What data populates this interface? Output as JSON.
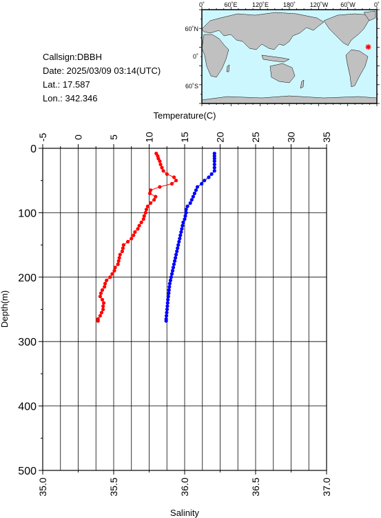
{
  "info": {
    "callsign": "Callsign:DBBH",
    "date": "Date:  2025/03/09 03:14(UTC)",
    "lat": "Lat.:  17.587",
    "lon": "Lon.:  342.346"
  },
  "map": {
    "top_labels": [
      "0˚",
      "60˚E",
      "120˚E",
      "180˚",
      "120˚W",
      "60˚W",
      "0˚"
    ],
    "left_labels": [
      "60˚N",
      "0˚",
      "60˚S"
    ],
    "station": {
      "lat": 17.587,
      "lon": 342.346
    },
    "colors": {
      "ocean": "#cdf7ff",
      "land": "#c0c0c0",
      "marker": "#ff0000"
    }
  },
  "chart_data": {
    "type": "scatter",
    "top_axis": {
      "label": "Temperature(C)",
      "range": [
        -5,
        35
      ],
      "ticks": [
        -5,
        0,
        5,
        10,
        15,
        20,
        25,
        30,
        35
      ]
    },
    "bottom_axis": {
      "label": "Salinity",
      "range": [
        35.0,
        37.0
      ],
      "ticks": [
        "35.0",
        "35.5",
        "36.0",
        "36.5",
        "37.0"
      ]
    },
    "y_axis": {
      "label": "Depth(m)",
      "range": [
        0,
        500
      ],
      "inverted": true,
      "ticks": [
        0,
        100,
        200,
        300,
        400,
        500
      ]
    },
    "grid": true,
    "series": [
      {
        "axis": "temperature",
        "color": "#ff0000",
        "depth": [
          8,
          12,
          16,
          20,
          25,
          30,
          35,
          40,
          45,
          50,
          55,
          60,
          65,
          70,
          75,
          80,
          85,
          90,
          95,
          100,
          105,
          110,
          115,
          120,
          125,
          130,
          135,
          140,
          145,
          150,
          155,
          160,
          165,
          170,
          175,
          180,
          185,
          190,
          195,
          200,
          205,
          210,
          215,
          220,
          225,
          230,
          235,
          240,
          245,
          250,
          255,
          260,
          265,
          268
        ],
        "values": [
          11.0,
          11.2,
          11.3,
          11.5,
          11.6,
          11.8,
          12.0,
          12.5,
          13.5,
          13.8,
          13.2,
          11.5,
          10.2,
          10.1,
          10.9,
          10.7,
          10.2,
          9.8,
          9.6,
          9.5,
          9.3,
          9.2,
          8.9,
          8.6,
          8.4,
          8.0,
          7.8,
          7.5,
          7.0,
          6.4,
          6.3,
          6.2,
          5.9,
          5.8,
          5.7,
          5.6,
          5.2,
          5.1,
          4.8,
          4.5,
          4.0,
          3.8,
          3.7,
          3.4,
          3.2,
          3.1,
          3.4,
          3.6,
          3.5,
          3.5,
          3.3,
          3.1,
          2.8,
          2.8
        ]
      },
      {
        "axis": "salinity",
        "color": "#0000ff",
        "depth": [
          8,
          12,
          16,
          20,
          25,
          30,
          35,
          40,
          45,
          50,
          55,
          60,
          65,
          70,
          75,
          80,
          85,
          90,
          95,
          100,
          105,
          110,
          115,
          120,
          125,
          130,
          135,
          140,
          145,
          150,
          155,
          160,
          165,
          170,
          175,
          180,
          185,
          190,
          195,
          200,
          205,
          210,
          215,
          220,
          225,
          230,
          235,
          240,
          245,
          250,
          255,
          260,
          265,
          268
        ],
        "values": [
          36.21,
          36.21,
          36.21,
          36.21,
          36.21,
          36.21,
          36.21,
          36.19,
          36.17,
          36.14,
          36.12,
          36.09,
          36.08,
          36.07,
          36.06,
          36.05,
          36.04,
          36.02,
          36.01,
          36.01,
          36.005,
          36.0,
          35.99,
          35.985,
          35.98,
          35.975,
          35.97,
          35.965,
          35.96,
          35.955,
          35.95,
          35.945,
          35.94,
          35.935,
          35.93,
          35.925,
          35.92,
          35.915,
          35.91,
          35.905,
          35.9,
          35.895,
          35.892,
          35.89,
          35.888,
          35.885,
          35.882,
          35.88,
          35.878,
          35.876,
          35.874,
          35.872,
          35.87,
          35.87
        ]
      }
    ]
  }
}
